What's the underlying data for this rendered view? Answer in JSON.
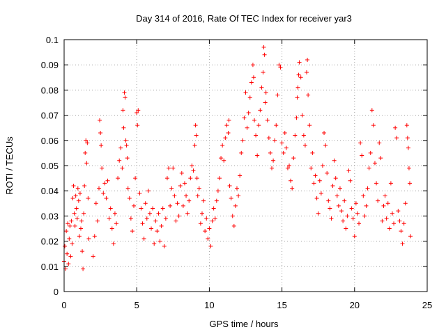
{
  "chart_data": {
    "type": "scatter",
    "title": "Day 314 of 2016, Rate Of TEC Index for receiver yar3",
    "xlabel": "GPS time / hours",
    "ylabel": "ROTI / TECUs",
    "xlim": [
      0,
      25
    ],
    "ylim": [
      0,
      0.1
    ],
    "x_ticks": [
      "0",
      "5",
      "10",
      "15",
      "20",
      "25"
    ],
    "y_ticks": [
      "0",
      "0.01",
      "0.02",
      "0.03",
      "0.04",
      "0.05",
      "0.06",
      "0.07",
      "0.08",
      "0.09",
      "0.1"
    ],
    "grid": true,
    "marker": "plus",
    "color": "#ff0000",
    "series": [
      {
        "points": [
          [
            0.0,
            0.012
          ],
          [
            0.05,
            0.018
          ],
          [
            0.1,
            0.009
          ],
          [
            0.15,
            0.024
          ],
          [
            0.2,
            0.015
          ],
          [
            0.25,
            0.027
          ],
          [
            0.3,
            0.011
          ],
          [
            0.35,
            0.021
          ],
          [
            0.4,
            0.026
          ],
          [
            0.45,
            0.014
          ],
          [
            0.5,
            0.028
          ],
          [
            0.55,
            0.019
          ],
          [
            0.6,
            0.037
          ],
          [
            0.65,
            0.042
          ],
          [
            0.7,
            0.031
          ],
          [
            0.75,
            0.026
          ],
          [
            0.8,
            0.038
          ],
          [
            0.85,
            0.033
          ],
          [
            0.9,
            0.029
          ],
          [
            0.95,
            0.041
          ],
          [
            1.0,
            0.036
          ],
          [
            1.05,
            0.022
          ],
          [
            1.1,
            0.039
          ],
          [
            1.15,
            0.025
          ],
          [
            1.2,
            0.028
          ],
          [
            1.25,
            0.016
          ],
          [
            1.3,
            0.009
          ],
          [
            1.35,
            0.031
          ],
          [
            1.4,
            0.042
          ],
          [
            1.45,
            0.055
          ],
          [
            1.5,
            0.06
          ],
          [
            1.55,
            0.051
          ],
          [
            1.6,
            0.059
          ],
          [
            1.65,
            0.037
          ],
          [
            1.7,
            0.021
          ],
          [
            2.0,
            0.014
          ],
          [
            2.1,
            0.022
          ],
          [
            2.2,
            0.035
          ],
          [
            2.3,
            0.028
          ],
          [
            2.4,
            0.041
          ],
          [
            2.45,
            0.068
          ],
          [
            2.5,
            0.063
          ],
          [
            2.55,
            0.058
          ],
          [
            2.6,
            0.049
          ],
          [
            2.7,
            0.039
          ],
          [
            2.8,
            0.043
          ],
          [
            2.9,
            0.037
          ],
          [
            3.0,
            0.044
          ],
          [
            3.1,
            0.029
          ],
          [
            3.2,
            0.033
          ],
          [
            3.3,
            0.025
          ],
          [
            3.4,
            0.019
          ],
          [
            3.5,
            0.031
          ],
          [
            3.6,
            0.027
          ],
          [
            3.7,
            0.045
          ],
          [
            3.8,
            0.052
          ],
          [
            3.9,
            0.057
          ],
          [
            4.0,
            0.049
          ],
          [
            4.05,
            0.072
          ],
          [
            4.1,
            0.065
          ],
          [
            4.15,
            0.079
          ],
          [
            4.2,
            0.077
          ],
          [
            4.25,
            0.06
          ],
          [
            4.3,
            0.058
          ],
          [
            4.35,
            0.053
          ],
          [
            4.4,
            0.041
          ],
          [
            4.5,
            0.037
          ],
          [
            4.6,
            0.029
          ],
          [
            4.7,
            0.024
          ],
          [
            4.8,
            0.034
          ],
          [
            4.9,
            0.045
          ],
          [
            5.0,
            0.071
          ],
          [
            5.05,
            0.066
          ],
          [
            5.1,
            0.072
          ],
          [
            5.2,
            0.039
          ],
          [
            5.3,
            0.033
          ],
          [
            5.4,
            0.027
          ],
          [
            5.5,
            0.021
          ],
          [
            5.6,
            0.035
          ],
          [
            5.7,
            0.029
          ],
          [
            5.8,
            0.04
          ],
          [
            5.9,
            0.031
          ],
          [
            6.0,
            0.025
          ],
          [
            6.1,
            0.033
          ],
          [
            6.2,
            0.019
          ],
          [
            6.3,
            0.028
          ],
          [
            6.4,
            0.024
          ],
          [
            6.5,
            0.031
          ],
          [
            6.6,
            0.02
          ],
          [
            6.7,
            0.026
          ],
          [
            6.8,
            0.033
          ],
          [
            6.9,
            0.018
          ],
          [
            7.0,
            0.029
          ],
          [
            7.1,
            0.045
          ],
          [
            7.2,
            0.049
          ],
          [
            7.3,
            0.034
          ],
          [
            7.4,
            0.041
          ],
          [
            7.5,
            0.049
          ],
          [
            7.6,
            0.038
          ],
          [
            7.7,
            0.028
          ],
          [
            7.8,
            0.035
          ],
          [
            7.9,
            0.03
          ],
          [
            8.0,
            0.042
          ],
          [
            8.1,
            0.047
          ],
          [
            8.2,
            0.034
          ],
          [
            8.3,
            0.043
          ],
          [
            8.4,
            0.038
          ],
          [
            8.5,
            0.031
          ],
          [
            8.6,
            0.036
          ],
          [
            8.7,
            0.045
          ],
          [
            8.8,
            0.05
          ],
          [
            8.9,
            0.048
          ],
          [
            9.0,
            0.058
          ],
          [
            9.05,
            0.066
          ],
          [
            9.1,
            0.062
          ],
          [
            9.15,
            0.045
          ],
          [
            9.2,
            0.038
          ],
          [
            9.3,
            0.041
          ],
          [
            9.4,
            0.027
          ],
          [
            9.5,
            0.031
          ],
          [
            9.6,
            0.036
          ],
          [
            9.7,
            0.024
          ],
          [
            9.8,
            0.029
          ],
          [
            9.9,
            0.021
          ],
          [
            10.0,
            0.025
          ],
          [
            10.1,
            0.018
          ],
          [
            10.2,
            0.028
          ],
          [
            10.3,
            0.033
          ],
          [
            10.4,
            0.029
          ],
          [
            10.5,
            0.036
          ],
          [
            10.6,
            0.04
          ],
          [
            10.7,
            0.045
          ],
          [
            10.8,
            0.053
          ],
          [
            10.9,
            0.058
          ],
          [
            11.0,
            0.052
          ],
          [
            11.1,
            0.061
          ],
          [
            11.2,
            0.066
          ],
          [
            11.3,
            0.063
          ],
          [
            11.35,
            0.068
          ],
          [
            11.4,
            0.042
          ],
          [
            11.5,
            0.037
          ],
          [
            11.6,
            0.03
          ],
          [
            11.7,
            0.026
          ],
          [
            11.8,
            0.034
          ],
          [
            11.9,
            0.041
          ],
          [
            12.0,
            0.038
          ],
          [
            12.1,
            0.046
          ],
          [
            12.2,
            0.055
          ],
          [
            12.3,
            0.06
          ],
          [
            12.4,
            0.069
          ],
          [
            12.5,
            0.079
          ],
          [
            12.6,
            0.065
          ],
          [
            12.7,
            0.071
          ],
          [
            12.8,
            0.077
          ],
          [
            12.9,
            0.083
          ],
          [
            13.0,
            0.09
          ],
          [
            13.05,
            0.085
          ],
          [
            13.1,
            0.068
          ],
          [
            13.2,
            0.062
          ],
          [
            13.3,
            0.054
          ],
          [
            13.4,
            0.066
          ],
          [
            13.5,
            0.072
          ],
          [
            13.6,
            0.081
          ],
          [
            13.7,
            0.087
          ],
          [
            13.75,
            0.097
          ],
          [
            13.8,
            0.094
          ],
          [
            13.85,
            0.075
          ],
          [
            13.9,
            0.079
          ],
          [
            14.0,
            0.068
          ],
          [
            14.1,
            0.061
          ],
          [
            14.2,
            0.055
          ],
          [
            14.3,
            0.049
          ],
          [
            14.4,
            0.052
          ],
          [
            14.5,
            0.06
          ],
          [
            14.6,
            0.066
          ],
          [
            14.7,
            0.078
          ],
          [
            14.8,
            0.09
          ],
          [
            14.9,
            0.089
          ],
          [
            15.0,
            0.059
          ],
          [
            15.1,
            0.055
          ],
          [
            15.2,
            0.063
          ],
          [
            15.3,
            0.057
          ],
          [
            15.4,
            0.049
          ],
          [
            15.5,
            0.05
          ],
          [
            15.6,
            0.044
          ],
          [
            15.7,
            0.041
          ],
          [
            15.8,
            0.053
          ],
          [
            15.9,
            0.062
          ],
          [
            16.0,
            0.069
          ],
          [
            16.05,
            0.077
          ],
          [
            16.1,
            0.081
          ],
          [
            16.15,
            0.086
          ],
          [
            16.2,
            0.091
          ],
          [
            16.3,
            0.085
          ],
          [
            16.4,
            0.07
          ],
          [
            16.5,
            0.062
          ],
          [
            16.6,
            0.058
          ],
          [
            16.7,
            0.087
          ],
          [
            16.75,
            0.092
          ],
          [
            16.8,
            0.078
          ],
          [
            16.9,
            0.066
          ],
          [
            17.0,
            0.049
          ],
          [
            17.1,
            0.055
          ],
          [
            17.2,
            0.043
          ],
          [
            17.3,
            0.046
          ],
          [
            17.4,
            0.037
          ],
          [
            17.5,
            0.031
          ],
          [
            17.6,
            0.044
          ],
          [
            17.7,
            0.039
          ],
          [
            17.8,
            0.05
          ],
          [
            17.9,
            0.063
          ],
          [
            18.0,
            0.058
          ],
          [
            18.1,
            0.047
          ],
          [
            18.2,
            0.036
          ],
          [
            18.3,
            0.033
          ],
          [
            18.4,
            0.029
          ],
          [
            18.5,
            0.042
          ],
          [
            18.6,
            0.052
          ],
          [
            18.7,
            0.045
          ],
          [
            18.8,
            0.038
          ],
          [
            18.9,
            0.034
          ],
          [
            19.0,
            0.041
          ],
          [
            19.1,
            0.032
          ],
          [
            19.2,
            0.028
          ],
          [
            19.3,
            0.036
          ],
          [
            19.4,
            0.025
          ],
          [
            19.5,
            0.03
          ],
          [
            19.6,
            0.048
          ],
          [
            19.7,
            0.044
          ],
          [
            19.8,
            0.033
          ],
          [
            19.9,
            0.029
          ],
          [
            20.0,
            0.022
          ],
          [
            20.1,
            0.035
          ],
          [
            20.2,
            0.031
          ],
          [
            20.3,
            0.027
          ],
          [
            20.4,
            0.059
          ],
          [
            20.5,
            0.054
          ],
          [
            20.6,
            0.038
          ],
          [
            20.7,
            0.03
          ],
          [
            20.8,
            0.034
          ],
          [
            20.9,
            0.041
          ],
          [
            21.0,
            0.049
          ],
          [
            21.1,
            0.055
          ],
          [
            21.2,
            0.072
          ],
          [
            21.3,
            0.066
          ],
          [
            21.4,
            0.051
          ],
          [
            21.5,
            0.043
          ],
          [
            21.6,
            0.036
          ],
          [
            21.7,
            0.059
          ],
          [
            21.8,
            0.053
          ],
          [
            21.9,
            0.028
          ],
          [
            22.0,
            0.034
          ],
          [
            22.1,
            0.038
          ],
          [
            22.2,
            0.029
          ],
          [
            22.3,
            0.035
          ],
          [
            22.4,
            0.025
          ],
          [
            22.5,
            0.043
          ],
          [
            22.6,
            0.031
          ],
          [
            22.7,
            0.027
          ],
          [
            22.8,
            0.065
          ],
          [
            22.9,
            0.061
          ],
          [
            23.0,
            0.032
          ],
          [
            23.1,
            0.028
          ],
          [
            23.2,
            0.024
          ],
          [
            23.3,
            0.019
          ],
          [
            23.4,
            0.027
          ],
          [
            23.5,
            0.035
          ],
          [
            23.6,
            0.066
          ],
          [
            23.65,
            0.061
          ],
          [
            23.7,
            0.057
          ],
          [
            23.75,
            0.049
          ],
          [
            23.8,
            0.043
          ],
          [
            23.85,
            0.022
          ]
        ]
      }
    ]
  }
}
